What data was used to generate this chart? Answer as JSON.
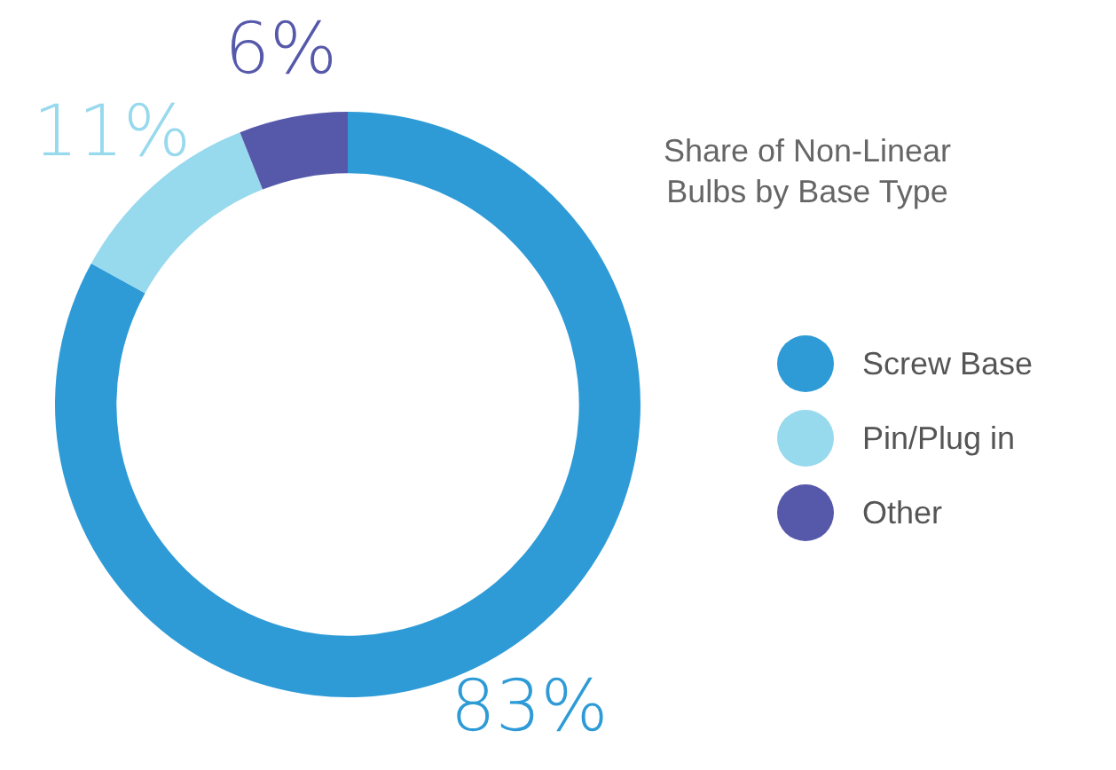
{
  "chart_data": {
    "type": "donut",
    "title": "Share of Non-Linear\nBulbs by Base Type",
    "categories": [
      "Screw Base",
      "Pin/Plug in",
      "Other"
    ],
    "values": [
      83,
      11,
      6
    ],
    "colors": [
      "#2e9bd7",
      "#97d9ed",
      "#5659aa"
    ],
    "value_labels": [
      "83%",
      "11%",
      "6%"
    ],
    "legend": "right"
  }
}
